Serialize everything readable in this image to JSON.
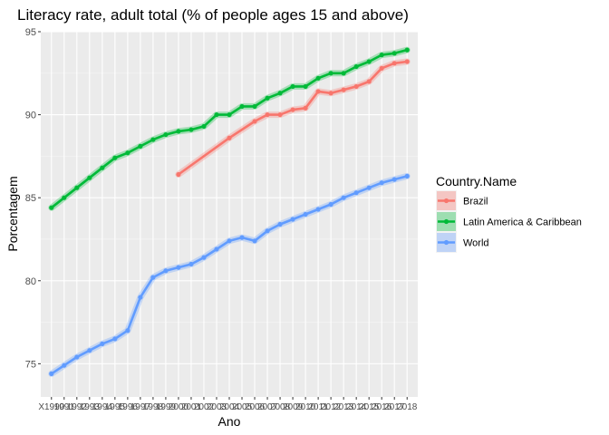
{
  "chart_data": {
    "type": "line",
    "title": "Literacy rate, adult total (% of people ages 15 and above)",
    "xlabel": "Ano",
    "ylabel": "Porcentagem",
    "ylim": [
      73,
      95
    ],
    "yticks": [
      75,
      80,
      85,
      90,
      95
    ],
    "grid": true,
    "legend_placement": "right",
    "x": [
      1990,
      1991,
      1992,
      1993,
      1994,
      1995,
      1996,
      1997,
      1998,
      1999,
      2000,
      2001,
      2002,
      2003,
      2004,
      2005,
      2006,
      2007,
      2008,
      2009,
      2010,
      2011,
      2012,
      2013,
      2014,
      2015,
      2016,
      2017,
      2018
    ],
    "x_tick_labels": [
      "X1990",
      "1991",
      "1992",
      "1993",
      "1994",
      "1995",
      "1996",
      "1997",
      "1998",
      "1999",
      "2000",
      "2001",
      "2002",
      "2003",
      "2004",
      "2005",
      "2006",
      "2007",
      "2008",
      "2009",
      "2010",
      "2011",
      "2012",
      "2013",
      "2014",
      "2015",
      "2016",
      "2017",
      "2018"
    ],
    "legend_title": "Country.Name",
    "series": [
      {
        "name": "Brazil",
        "color": "#F8766D",
        "values": [
          null,
          null,
          null,
          null,
          null,
          null,
          null,
          null,
          null,
          null,
          86.4,
          null,
          null,
          null,
          88.6,
          null,
          89.6,
          90.0,
          90.0,
          90.3,
          90.4,
          91.4,
          91.3,
          91.5,
          91.7,
          92.0,
          92.8,
          93.1,
          93.2
        ]
      },
      {
        "name": "Latin America & Caribbean",
        "color": "#00BA38",
        "values": [
          84.4,
          85.0,
          85.6,
          86.2,
          86.8,
          87.4,
          87.7,
          88.1,
          88.5,
          88.8,
          89.0,
          89.1,
          89.3,
          90.0,
          90.0,
          90.5,
          90.5,
          91.0,
          91.3,
          91.7,
          91.7,
          92.2,
          92.5,
          92.5,
          92.9,
          93.2,
          93.6,
          93.7,
          93.9
        ]
      },
      {
        "name": "World",
        "color": "#619CFF",
        "values": [
          74.4,
          74.9,
          75.4,
          75.8,
          76.2,
          76.5,
          77.0,
          79.0,
          80.2,
          80.6,
          80.8,
          81.0,
          81.4,
          81.9,
          82.4,
          82.6,
          82.4,
          83.0,
          83.4,
          83.7,
          84.0,
          84.3,
          84.6,
          85.0,
          85.3,
          85.6,
          85.9,
          86.1,
          86.3
        ]
      }
    ]
  }
}
